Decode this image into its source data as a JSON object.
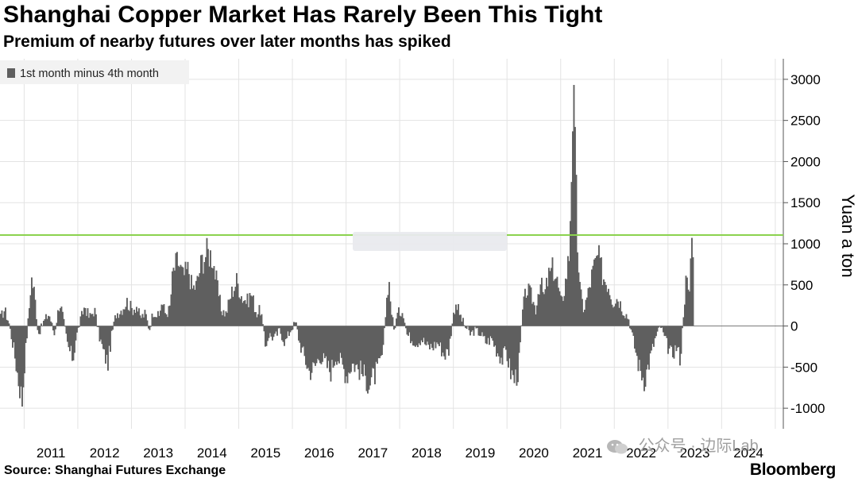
{
  "header": {
    "title": "Shanghai Copper Market Has Rarely Been This Tight",
    "subtitle": "Premium of nearby futures over later months has spiked"
  },
  "footer": {
    "source": "Source: Shanghai Futures Exchange",
    "brand": "Bloomberg",
    "watermark": "公众号 · 边际Lab"
  },
  "chart_data": {
    "type": "bar",
    "title": "Shanghai Copper Market Has Rarely Been This Tight",
    "subtitle": "Premium of nearby futures over later months has spiked",
    "ylabel": "Yuan a ton",
    "xlabel": "",
    "ylim": [
      -1250,
      3250
    ],
    "y_ticks": [
      3000,
      2500,
      2000,
      1500,
      1000,
      500,
      0,
      -500,
      -1000
    ],
    "x_ticks": [
      "2011",
      "2012",
      "2013",
      "2014",
      "2015",
      "2016",
      "2017",
      "2018",
      "2019",
      "2020",
      "2021",
      "2022",
      "2023",
      "2024"
    ],
    "x_range": [
      2010.55,
      2025.15
    ],
    "grid": "vertical and horizontal",
    "legend": "top-left",
    "series": [
      {
        "name": "1st month minus 4th month",
        "color": "#5f5f5f",
        "keypoints": [
          [
            2010.55,
            100
          ],
          [
            2010.62,
            200
          ],
          [
            2010.7,
            50
          ],
          [
            2010.8,
            -300
          ],
          [
            2010.88,
            -650
          ],
          [
            2010.95,
            -900
          ],
          [
            2011.0,
            -400
          ],
          [
            2011.08,
            200
          ],
          [
            2011.12,
            600
          ],
          [
            2011.18,
            400
          ],
          [
            2011.25,
            -100
          ],
          [
            2011.35,
            50
          ],
          [
            2011.45,
            150
          ],
          [
            2011.55,
            -100
          ],
          [
            2011.65,
            300
          ],
          [
            2011.7,
            150
          ],
          [
            2011.8,
            -250
          ],
          [
            2011.9,
            -400
          ],
          [
            2011.95,
            -150
          ],
          [
            2012.05,
            100
          ],
          [
            2012.12,
            250
          ],
          [
            2012.2,
            100
          ],
          [
            2012.3,
            200
          ],
          [
            2012.38,
            -100
          ],
          [
            2012.48,
            -350
          ],
          [
            2012.55,
            -450
          ],
          [
            2012.62,
            -100
          ],
          [
            2012.7,
            150
          ],
          [
            2012.8,
            200
          ],
          [
            2012.9,
            300
          ],
          [
            2013.0,
            200
          ],
          [
            2013.08,
            250
          ],
          [
            2013.15,
            100
          ],
          [
            2013.25,
            150
          ],
          [
            2013.32,
            -50
          ],
          [
            2013.4,
            200
          ],
          [
            2013.5,
            100
          ],
          [
            2013.55,
            300
          ],
          [
            2013.62,
            150
          ],
          [
            2013.7,
            200
          ],
          [
            2013.76,
            650
          ],
          [
            2013.85,
            800
          ],
          [
            2013.95,
            600
          ],
          [
            2014.05,
            700
          ],
          [
            2014.12,
            450
          ],
          [
            2014.2,
            500
          ],
          [
            2014.3,
            800
          ],
          [
            2014.4,
            900
          ],
          [
            2014.5,
            850
          ],
          [
            2014.58,
            500
          ],
          [
            2014.66,
            200
          ],
          [
            2014.75,
            150
          ],
          [
            2014.85,
            400
          ],
          [
            2014.95,
            550
          ],
          [
            2015.05,
            350
          ],
          [
            2015.15,
            300
          ],
          [
            2015.22,
            400
          ],
          [
            2015.32,
            150
          ],
          [
            2015.4,
            200
          ],
          [
            2015.48,
            -250
          ],
          [
            2015.55,
            -100
          ],
          [
            2015.65,
            -150
          ],
          [
            2015.75,
            -50
          ],
          [
            2015.85,
            -200
          ],
          [
            2015.95,
            -50
          ],
          [
            2016.05,
            50
          ],
          [
            2016.12,
            -200
          ],
          [
            2016.2,
            -350
          ],
          [
            2016.3,
            -550
          ],
          [
            2016.4,
            -500
          ],
          [
            2016.5,
            -350
          ],
          [
            2016.6,
            -450
          ],
          [
            2016.7,
            -550
          ],
          [
            2016.8,
            -350
          ],
          [
            2016.9,
            -450
          ],
          [
            2017.0,
            -600
          ],
          [
            2017.1,
            -450
          ],
          [
            2017.2,
            -500
          ],
          [
            2017.32,
            -600
          ],
          [
            2017.42,
            -700
          ],
          [
            2017.52,
            -600
          ],
          [
            2017.6,
            -500
          ],
          [
            2017.68,
            -300
          ],
          [
            2017.73,
            200
          ],
          [
            2017.78,
            600
          ],
          [
            2017.83,
            200
          ],
          [
            2017.88,
            -50
          ],
          [
            2017.95,
            150
          ],
          [
            2018.05,
            200
          ],
          [
            2018.12,
            -100
          ],
          [
            2018.2,
            -150
          ],
          [
            2018.3,
            -200
          ],
          [
            2018.4,
            -150
          ],
          [
            2018.5,
            -250
          ],
          [
            2018.6,
            -250
          ],
          [
            2018.7,
            -200
          ],
          [
            2018.82,
            -350
          ],
          [
            2018.9,
            -300
          ],
          [
            2018.97,
            50
          ],
          [
            2019.03,
            300
          ],
          [
            2019.1,
            150
          ],
          [
            2019.2,
            0
          ],
          [
            2019.3,
            -100
          ],
          [
            2019.4,
            -50
          ],
          [
            2019.5,
            -100
          ],
          [
            2019.6,
            -200
          ],
          [
            2019.7,
            -150
          ],
          [
            2019.8,
            -300
          ],
          [
            2019.9,
            -400
          ],
          [
            2019.97,
            -300
          ],
          [
            2020.05,
            -550
          ],
          [
            2020.12,
            -650
          ],
          [
            2020.2,
            -550
          ],
          [
            2020.28,
            200
          ],
          [
            2020.35,
            450
          ],
          [
            2020.45,
            350
          ],
          [
            2020.52,
            200
          ],
          [
            2020.6,
            550
          ],
          [
            2020.68,
            350
          ],
          [
            2020.76,
            600
          ],
          [
            2020.85,
            700
          ],
          [
            2020.92,
            550
          ],
          [
            2021.0,
            250
          ],
          [
            2021.08,
            550
          ],
          [
            2021.15,
            900
          ],
          [
            2021.22,
            2850
          ],
          [
            2021.26,
            2000
          ],
          [
            2021.3,
            1000
          ],
          [
            2021.35,
            400
          ],
          [
            2021.42,
            200
          ],
          [
            2021.5,
            400
          ],
          [
            2021.58,
            650
          ],
          [
            2021.68,
            850
          ],
          [
            2021.78,
            600
          ],
          [
            2021.88,
            500
          ],
          [
            2021.96,
            300
          ],
          [
            2022.05,
            350
          ],
          [
            2022.15,
            200
          ],
          [
            2022.25,
            100
          ],
          [
            2022.35,
            -200
          ],
          [
            2022.45,
            -500
          ],
          [
            2022.55,
            -650
          ],
          [
            2022.65,
            -400
          ],
          [
            2022.75,
            -150
          ],
          [
            2022.85,
            0
          ],
          [
            2022.95,
            -200
          ],
          [
            2023.05,
            -350
          ],
          [
            2023.15,
            -250
          ],
          [
            2023.22,
            -400
          ],
          [
            2023.28,
            200
          ],
          [
            2023.33,
            600
          ],
          [
            2023.38,
            300
          ],
          [
            2023.42,
            1000
          ],
          [
            2023.46,
            1050
          ]
        ]
      }
    ]
  }
}
